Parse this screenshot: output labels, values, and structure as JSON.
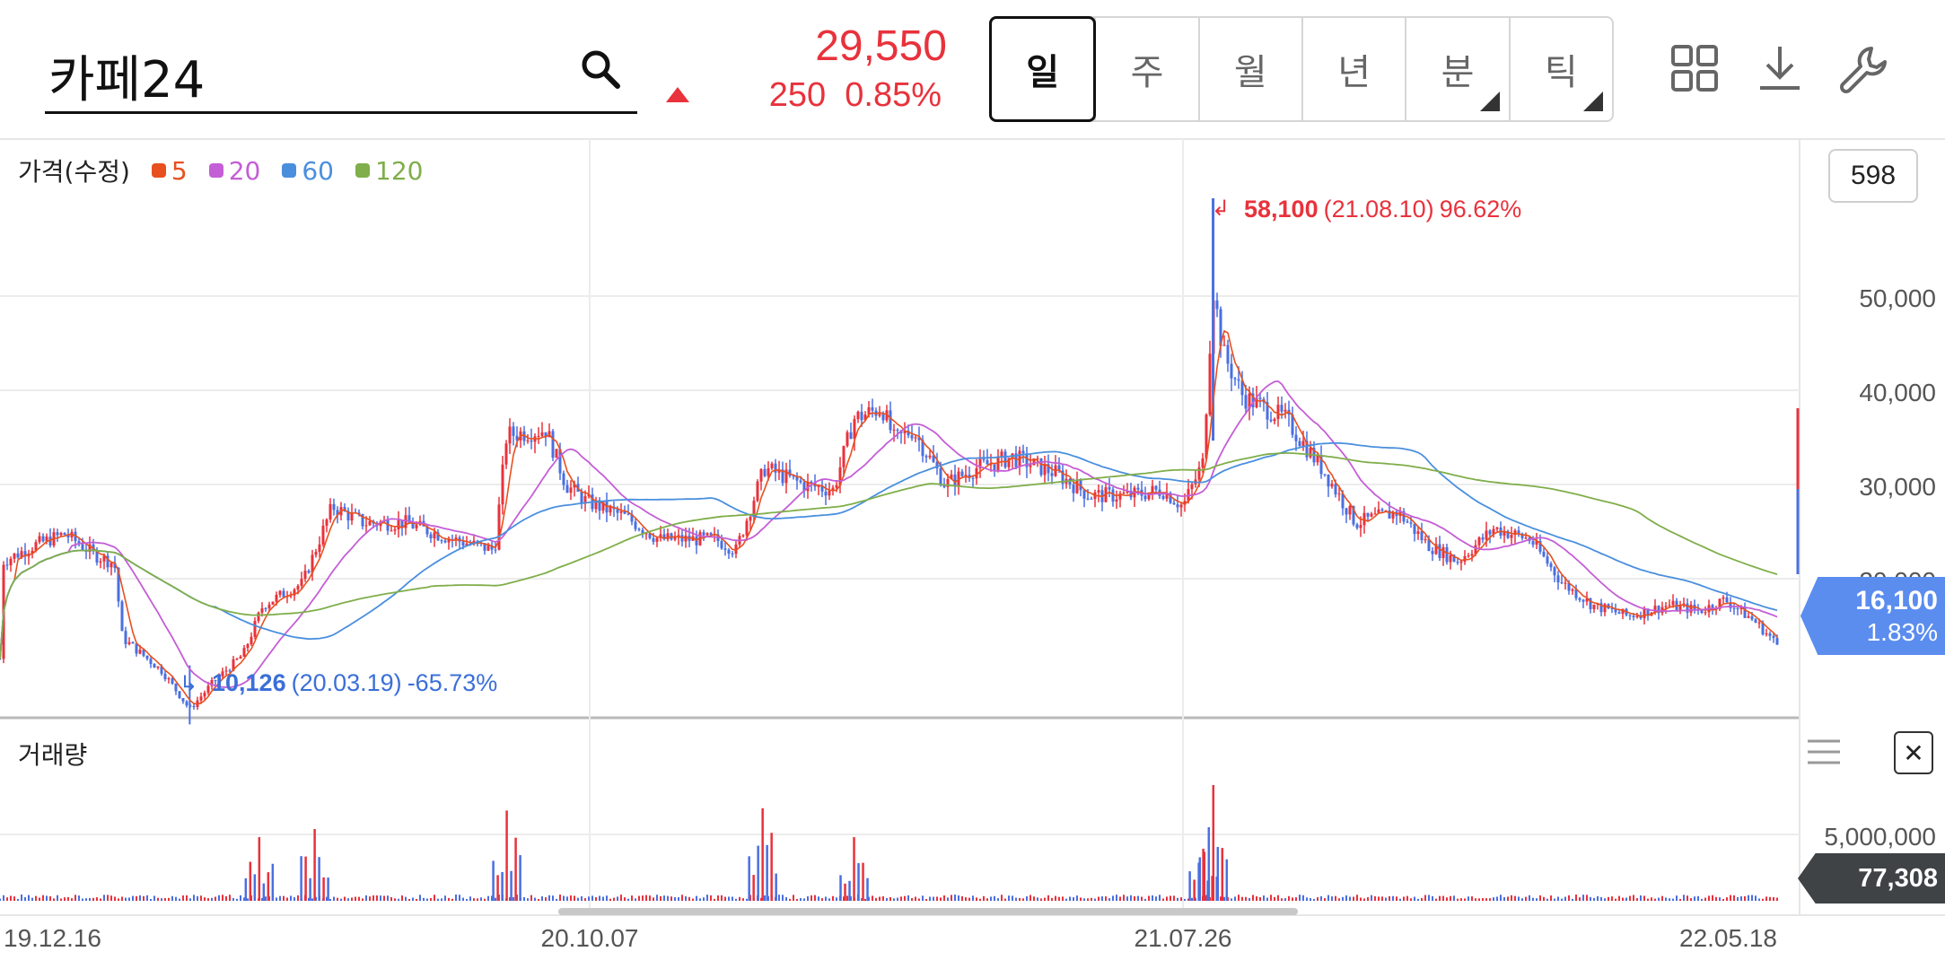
{
  "search": {
    "value": "카페24"
  },
  "quote": {
    "price": "29,550",
    "change": "250  0.85%",
    "direction": "up",
    "color": "#e8323c"
  },
  "period_tabs": [
    {
      "label": "일",
      "active": true,
      "has_menu": false
    },
    {
      "label": "주",
      "active": false,
      "has_menu": false
    },
    {
      "label": "월",
      "active": false,
      "has_menu": false
    },
    {
      "label": "년",
      "active": false,
      "has_menu": false
    },
    {
      "label": "분",
      "active": false,
      "has_menu": true
    },
    {
      "label": "틱",
      "active": false,
      "has_menu": true
    }
  ],
  "toolbar_icons": [
    "grid-icon",
    "download-icon",
    "wrench-icon"
  ],
  "price_panel": {
    "title": "가격(수정)",
    "legend": [
      {
        "label": "5",
        "color": "#e8501f"
      },
      {
        "label": "20",
        "color": "#c45ed6"
      },
      {
        "label": "60",
        "color": "#4a8fde"
      },
      {
        "label": "120",
        "color": "#7fae4a"
      }
    ],
    "count_badge": "598",
    "max_annotation": {
      "value": "58,100",
      "date": "(21.08.10)",
      "pct": "96.62%"
    },
    "min_annotation": {
      "value": "10,126",
      "date": "(20.03.19)",
      "pct": "-65.73%"
    },
    "current_tag": {
      "value": "16,100",
      "pct": "1.83%",
      "color": "#5b8def"
    }
  },
  "volume_panel": {
    "title": "거래량",
    "axis_label": "5,000,000",
    "current_tag": {
      "value": "77,308"
    }
  },
  "chart_data": {
    "type": "candlestick",
    "x_ticks": [
      "19.12.16",
      "20.10.07",
      "21.07.26",
      "22.05.18"
    ],
    "y_ticks": [
      "50,000",
      "40,000",
      "30,000",
      "20,000"
    ],
    "ylim": [
      14000,
      59000
    ],
    "vol_ticks": [
      "5,000,000"
    ],
    "up_color": "#e8323c",
    "down_color": "#4a6fe0",
    "price_path": [
      [
        "19.12.16",
        25000
      ],
      [
        "20.01.01",
        26500
      ],
      [
        "20.01.16",
        27500
      ],
      [
        "20.02.01",
        25500
      ],
      [
        "20.02.10",
        24800
      ],
      [
        "20.02.14",
        18000
      ],
      [
        "20.03.05",
        15000
      ],
      [
        "20.03.19",
        11500
      ],
      [
        "20.03.31",
        14000
      ],
      [
        "20.04.15",
        16500
      ],
      [
        "20.04.25",
        21000
      ],
      [
        "20.05.15",
        23000
      ],
      [
        "20.05.30",
        30000
      ],
      [
        "20.06.15",
        28500
      ],
      [
        "20.07.06",
        28500
      ],
      [
        "20.07.30",
        27000
      ],
      [
        "20.08.20",
        26000
      ],
      [
        "20.08.26",
        36500
      ],
      [
        "20.09.15",
        37000
      ],
      [
        "20.09.25",
        32000
      ],
      [
        "20.10.05",
        30500
      ],
      [
        "20.10.25",
        29000
      ],
      [
        "20.11.10",
        27000
      ],
      [
        "20.12.08",
        27000
      ],
      [
        "20.12.18",
        26000
      ],
      [
        "21.01.01",
        33500
      ],
      [
        "21.01.20",
        32000
      ],
      [
        "21.02.04",
        31500
      ],
      [
        "21.02.14",
        38000
      ],
      [
        "21.02.28",
        39000
      ],
      [
        "21.03.06",
        36000
      ],
      [
        "21.03.15",
        37000
      ],
      [
        "21.03.31",
        32000
      ],
      [
        "21.04.15",
        33500
      ],
      [
        "21.05.03",
        34500
      ],
      [
        "21.05.25",
        33000
      ],
      [
        "21.06.10",
        31000
      ],
      [
        "21.06.30",
        31000
      ],
      [
        "21.07.16",
        31500
      ],
      [
        "21.07.26",
        30000
      ],
      [
        "21.08.05",
        34000
      ],
      [
        "21.08.10",
        50000
      ],
      [
        "21.08.15",
        44000
      ],
      [
        "21.08.25",
        40000
      ],
      [
        "21.09.15",
        38000
      ],
      [
        "21.10.05",
        33000
      ],
      [
        "21.10.20",
        28500
      ],
      [
        "21.11.10",
        29500
      ],
      [
        "21.11.25",
        26500
      ],
      [
        "21.12.10",
        25000
      ],
      [
        "21.12.28",
        28000
      ],
      [
        "22.01.15",
        27000
      ],
      [
        "22.01.31",
        23000
      ],
      [
        "22.02.15",
        21000
      ],
      [
        "22.03.05",
        20000
      ],
      [
        "22.03.25",
        21000
      ],
      [
        "22.04.10",
        20500
      ],
      [
        "22.04.22",
        21500
      ],
      [
        "22.05.07",
        19500
      ],
      [
        "22.05.25",
        16100
      ]
    ],
    "ma_series": [
      {
        "name": "5",
        "values": [
          [
            0,
            1270
          ],
          [
            20,
            1300
          ],
          [
            40,
            1270
          ],
          [
            60,
            1300
          ],
          [
            75,
            1250
          ],
          [
            100,
            1230
          ],
          [
            118,
            1360
          ],
          [
            125,
            1520
          ],
          [
            150,
            1600
          ],
          [
            190,
            1430
          ],
          [
            215,
            1520
          ],
          [
            240,
            1680
          ],
          [
            260,
            1720
          ],
          [
            275,
            1890
          ],
          [
            300,
            1850
          ],
          [
            330,
            1870
          ],
          [
            355,
            1860
          ],
          [
            400,
            1920
          ],
          [
            440,
            1880
          ],
          [
            505,
            1860
          ],
          [
            525,
            2090
          ],
          [
            545,
            2080
          ],
          [
            590,
            2030
          ],
          [
            620,
            1880
          ],
          [
            660,
            1970
          ],
          [
            700,
            1840
          ],
          [
            730,
            1890
          ],
          [
            768,
            1880
          ],
          [
            800,
            2140
          ],
          [
            830,
            2130
          ],
          [
            870,
            2180
          ],
          [
            910,
            2300
          ],
          [
            935,
            2230
          ],
          [
            960,
            2160
          ],
          [
            1000,
            2170
          ],
          [
            1050,
            2200
          ],
          [
            1090,
            2200
          ],
          [
            1130,
            2250
          ],
          [
            1170,
            2220
          ],
          [
            1230,
            2230
          ],
          [
            1280,
            2200
          ],
          [
            1310,
            2190
          ],
          [
            1330,
            2260
          ],
          [
            1350,
            2760
          ],
          [
            1380,
            2560
          ],
          [
            1420,
            2480
          ],
          [
            1460,
            2370
          ],
          [
            1480,
            2270
          ],
          [
            1500,
            2250
          ],
          [
            1540,
            2160
          ],
          [
            1600,
            2130
          ],
          [
            1650,
            2080
          ],
          [
            1700,
            2060
          ],
          [
            1740,
            2050
          ],
          [
            1780,
            1950
          ],
          [
            1840,
            1930
          ],
          [
            1900,
            1920
          ],
          [
            1960,
            1890
          ],
          [
            1980,
            1850
          ]
        ]
      },
      {
        "name": "20",
        "values": []
      },
      {
        "name": "60",
        "values": []
      },
      {
        "name": "120",
        "values": []
      }
    ],
    "volume_spikes": [
      {
        "x": "20.04.23",
        "rel": 0.55
      },
      {
        "x": "20.05.21",
        "rel": 0.62
      },
      {
        "x": "20.08.26",
        "rel": 0.78
      },
      {
        "x": "20.12.31",
        "rel": 0.8
      },
      {
        "x": "21.02.14",
        "rel": 0.55
      },
      {
        "x": "21.08.10",
        "rel": 1.0
      },
      {
        "x": "21.08.05",
        "rel": 0.45
      }
    ]
  }
}
